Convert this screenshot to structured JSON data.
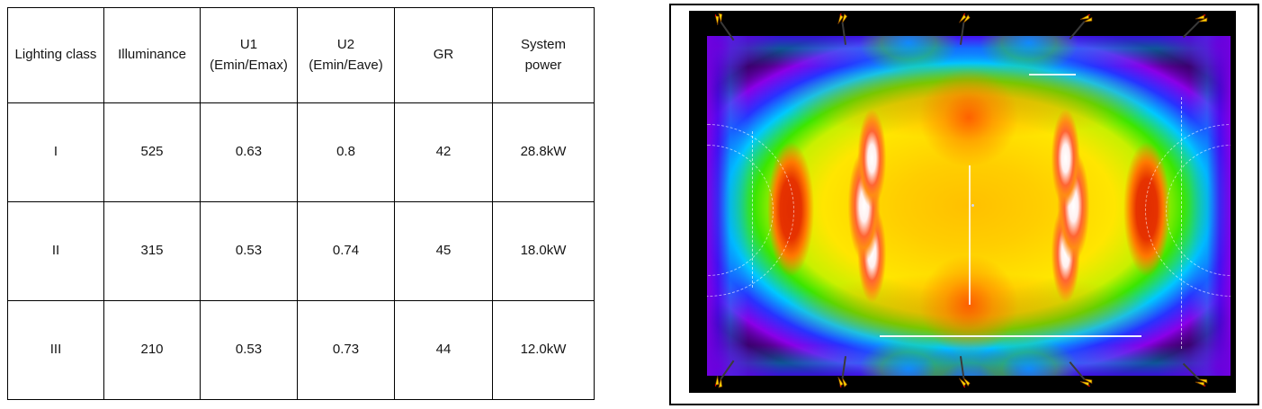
{
  "table": {
    "headers": [
      "Lighting class",
      "Illuminance",
      "U1\n(Emin/Emax)",
      "U2\n(Emin/Eave)",
      "GR",
      "System\npower"
    ],
    "rows": [
      [
        "I",
        "525",
        "0.63",
        "0.8",
        "42",
        "28.8kW"
      ],
      [
        "II",
        "315",
        "0.53",
        "0.74",
        "45",
        "18.0kW"
      ],
      [
        "III",
        "210",
        "0.53",
        "0.73",
        "44",
        "12.0kW"
      ]
    ]
  },
  "heatmap": {
    "background": "#000000",
    "field_base": "#1e0032",
    "palette": {
      "white_hot": "#ffffff",
      "red": "#ff3c14",
      "dark_red": "#e12d00",
      "orange": "#ff8c00",
      "yellow": "#ffe600",
      "green": "#3ce600",
      "cyan": "#00c8ff",
      "blue": "#2832ff",
      "purple": "#8a00e8",
      "black": "#000000"
    },
    "layers": [
      "radial-gradient(16px 55px at 31.5% 36%, #ffffff 0%, #fff0f0 28%, #ff6432 55%, #ff8c14 75%, rgba(255,150,20,0) 100%)",
      "radial-gradient(18px 62px at 30% 50%, #ffffff 0%, #fff0f0 28%, #ff6432 55%, #ff8c14 75%, rgba(255,150,20,0) 100%)",
      "radial-gradient(16px 55px at 31.5% 64%, #ffffff 0%, #fff0f0 28%, #ff6432 55%, #ff8c14 75%, rgba(255,150,20,0) 100%)",
      "radial-gradient(16px 55px at 68.5% 36%, #ffffff 0%, #fff0f0 28%, #ff6432 55%, #ff8c14 75%, rgba(255,150,20,0) 100%)",
      "radial-gradient(18px 62px at 70% 50%, #ffffff 0%, #fff0f0 28%, #ff6432 55%, #ff8c14 75%, rgba(255,150,20,0) 100%)",
      "radial-gradient(16px 55px at 68.5% 64%, #ffffff 0%, #fff0f0 28%, #ff6432 55%, #ff8c14 75%, rgba(255,150,20,0) 100%)",
      "radial-gradient(26px 75px at 16% 51%, #e12d00 0%, #e63200 45%, #ff7800 70%, rgba(255,140,0,0) 100%)",
      "radial-gradient(26px 75px at 84% 51%, #e12d00 0%, #e63200 45%, #ff7800 70%, rgba(255,140,0,0) 100%)",
      "radial-gradient(55px 55px at 50% 24%, rgba(255,80,0,.85) 0%, rgba(255,120,0,.5) 50%, rgba(255,140,0,0) 100%)",
      "radial-gradient(55px 55px at 50% 79%, rgba(255,80,0,.85) 0%, rgba(255,120,0,.5) 50%, rgba(255,140,0,0) 100%)",
      "radial-gradient(210px 42px at 50% 19%, rgba(255,110,0,.5) 0%, rgba(255,130,0,.3) 55%, rgba(255,150,0,0) 100%)",
      "radial-gradient(210px 42px at 50% 81%, rgba(255,110,0,.5) 0%, rgba(255,130,0,.3) 55%, rgba(255,150,0,0) 100%)",
      "radial-gradient(55px 34px at 38.5% 2%, rgba(0,170,255,.7) 0%, rgba(60,230,0,.4) 55%, rgba(100,230,0,0) 100%)",
      "radial-gradient(55px 34px at 61.5% 2%, rgba(0,170,255,.7) 0%, rgba(60,230,0,.4) 55%, rgba(100,230,0,0) 100%)",
      "radial-gradient(55px 34px at 38.5% 98%, rgba(0,170,255,.7) 0%, rgba(60,230,0,.4) 55%, rgba(100,230,0,0) 100%)",
      "radial-gradient(55px 34px at 61.5% 98%, rgba(0,170,255,.7) 0%, rgba(60,230,0,.4) 55%, rgba(100,230,0,0) 100%)",
      "radial-gradient(60px 40px at 50% 102%, rgba(0,170,255,.75) 0%, rgba(60,230,0,.4) 55%, rgba(100,230,0,0) 100%)",
      "radial-gradient(70px 55px at 2% 3%, rgba(110,0,220,.9) 0%, rgba(110,0,220,.45) 55%, rgba(110,0,220,0) 100%)",
      "radial-gradient(70px 55px at 98% 3%, rgba(110,0,220,.9) 0%, rgba(110,0,220,.45) 55%, rgba(110,0,220,0) 100%)",
      "radial-gradient(70px 55px at 2% 97%, rgba(110,0,220,.9) 0%, rgba(110,0,220,.45) 55%, rgba(110,0,220,0) 100%)",
      "radial-gradient(70px 55px at 98% 97%, rgba(110,0,220,.9) 0%, rgba(110,0,220,.45) 55%, rgba(110,0,220,0) 100%)",
      "linear-gradient(90deg, rgba(130,0,230,.95) 0px, rgba(70,10,240,.8) 12px, rgba(0,160,255,.45) 26px, rgba(0,0,0,0) 46px, rgba(0,0,0,0) 536px, rgba(0,160,255,.45) 556px, rgba(70,10,240,.8) 570px, rgba(130,0,230,.95) 582px)",
      "linear-gradient(180deg, rgba(60,20,245,.85) 0px, rgba(0,170,255,.5) 14px, rgba(0,0,0,0) 34px, rgba(0,0,0,0) 344px, rgba(0,170,255,.5) 364px, rgba(60,20,245,.85) 378px)",
      "radial-gradient(62% 56% at 50% 50%, #ffc000 0%, #ffce00 22%, #ffe600 45%, #c8f000 58%, #3ce600 66%, #00c8ff 75%, #2832ff 83%, #8a00e8 91%, #1e0032 100%)"
    ],
    "lights": {
      "beam_color": "#3a3a3a",
      "glyph_color": "#ffd400",
      "top": [
        {
          "x": 5.4,
          "rot": -35
        },
        {
          "x": 28.0,
          "rot": -8
        },
        {
          "x": 50.3,
          "rot": 8
        },
        {
          "x": 72.7,
          "rot": 40
        },
        {
          "x": 93.8,
          "rot": 45
        }
      ],
      "bottom": [
        {
          "x": 5.4,
          "rot": 35
        },
        {
          "x": 28.0,
          "rot": 8
        },
        {
          "x": 50.3,
          "rot": -8
        },
        {
          "x": 72.7,
          "rot": -40
        },
        {
          "x": 93.8,
          "rot": -45
        }
      ]
    }
  },
  "chart_data": [
    {
      "type": "table",
      "columns": [
        "Lighting class",
        "Illuminance",
        "U1 (Emin/Emax)",
        "U2 (Emin/Eave)",
        "GR",
        "System power"
      ],
      "rows": [
        [
          "I",
          525,
          0.63,
          0.8,
          42,
          "28.8kW"
        ],
        [
          "II",
          315,
          0.53,
          0.74,
          45,
          "18.0kW"
        ],
        [
          "III",
          210,
          0.53,
          0.73,
          44,
          "12.0kW"
        ]
      ]
    },
    {
      "type": "heatmap",
      "description": "False-colour illuminance distribution plot of a sports pitch on a black background; no numeric legend shown",
      "palette_low_to_high": [
        "black",
        "purple",
        "blue",
        "cyan",
        "green",
        "yellow",
        "orange",
        "red",
        "white"
      ],
      "features": {
        "hottest_zones": "two vertical crescent-shaped white-hot strips at roughly 30% and 70% of field width, centred vertically",
        "secondary_hot_zones": "dark-red lobes near the left and right goal areas",
        "coolest_zones": "field corners and outer rim (purple/blue bands)",
        "pitch_markings": "faint white centre line, centre spot, dashed penalty arcs left/right, dashed penalty-area lines, partial horizontal touch/area lines",
        "luminaires": "10 yellow floodlight symbols with grey aiming lines: 5 along the top edge, 5 along the bottom edge"
      }
    }
  ]
}
